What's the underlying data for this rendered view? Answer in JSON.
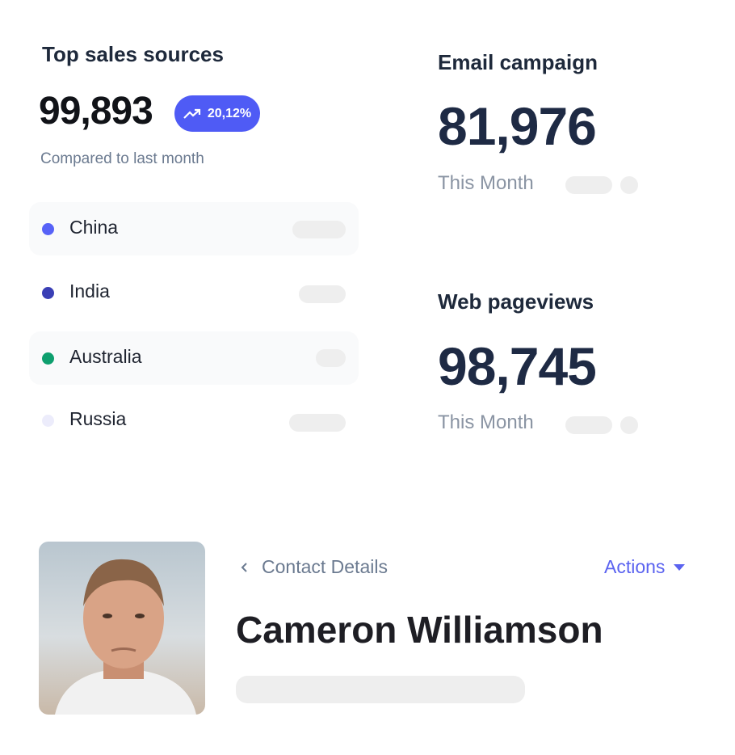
{
  "sales": {
    "title": "Top sales sources",
    "total": "99,893",
    "change": "20,12%",
    "change_icon": "trending-up-icon",
    "compare": "Compared to last month",
    "accent": "#4f5bf5",
    "sources": [
      {
        "name": "China",
        "color": "#5762f7"
      },
      {
        "name": "India",
        "color": "#3a3fb5"
      },
      {
        "name": "Australia",
        "color": "#0e9f6e"
      },
      {
        "name": "Russia",
        "color": "#ececfb"
      }
    ]
  },
  "email": {
    "title": "Email campaign",
    "value": "81,976",
    "period": "This Month"
  },
  "web": {
    "title": "Web pageviews",
    "value": "98,745",
    "period": "This Month"
  },
  "contact": {
    "back_label": "Contact Details",
    "actions_label": "Actions",
    "name": "Cameron Williamson",
    "accent": "#5b63f0"
  }
}
